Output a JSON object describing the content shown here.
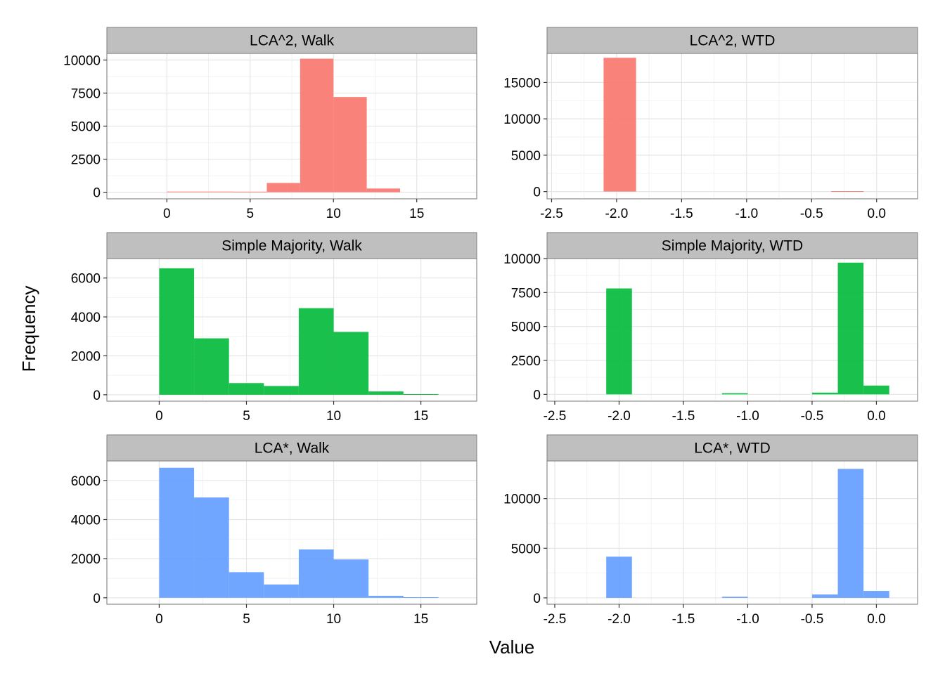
{
  "colors": {
    "series": [
      "#F8766D",
      "#00BA38",
      "#619CFF"
    ],
    "strip_fill": "#BFBFBF",
    "grid_major": "#E5E5E5",
    "grid_minor": "#F2F2F2",
    "panel_border": "#8C8C8C"
  },
  "chart_data": {
    "type": "bar",
    "subtype": "faceted histogram",
    "xlabel": "Value",
    "ylabel": "Frequency",
    "grid": true,
    "legend": "none",
    "panels": [
      {
        "title": "LCA^2, Walk",
        "xlim": [
          -3.6,
          18.6
        ],
        "ylim": [
          -500,
          10500
        ],
        "xticks": [
          {
            "v": 0,
            "label": "0"
          },
          {
            "v": 5,
            "label": "5"
          },
          {
            "v": 10,
            "label": "10"
          },
          {
            "v": 15,
            "label": "15"
          }
        ],
        "yticks": [
          {
            "v": 0,
            "label": "0"
          },
          {
            "v": 2500,
            "label": "2500"
          },
          {
            "v": 5000,
            "label": "5000"
          },
          {
            "v": 7500,
            "label": "7500"
          },
          {
            "v": 10000,
            "label": "10000"
          }
        ],
        "bin_width": 2,
        "bins": [
          {
            "x0": 0,
            "count": 50
          },
          {
            "x0": 2,
            "count": 50
          },
          {
            "x0": 4,
            "count": 40
          },
          {
            "x0": 6,
            "count": 700
          },
          {
            "x0": 8,
            "count": 10100
          },
          {
            "x0": 10,
            "count": 7200
          },
          {
            "x0": 12,
            "count": 280
          }
        ],
        "series": 0
      },
      {
        "title": "LCA^2, WTD",
        "xlim": [
          -2.535,
          0.315
        ],
        "ylim": [
          -1000,
          19000
        ],
        "xticks": [
          {
            "v": -2.5,
            "label": "-2.5"
          },
          {
            "v": -2.0,
            "label": "-2.0"
          },
          {
            "v": -1.5,
            "label": "-1.5"
          },
          {
            "v": -1.0,
            "label": "-1.0"
          },
          {
            "v": -0.5,
            "label": "-0.5"
          },
          {
            "v": 0.0,
            "label": "0.0"
          }
        ],
        "yticks": [
          {
            "v": 0,
            "label": "0"
          },
          {
            "v": 5000,
            "label": "5000"
          },
          {
            "v": 10000,
            "label": "10000"
          },
          {
            "v": 15000,
            "label": "15000"
          }
        ],
        "bin_width": 0.25,
        "bins": [
          {
            "x0": -2.1,
            "count": 18400
          },
          {
            "x0": -0.35,
            "count": 60
          }
        ],
        "series": 0
      },
      {
        "title": "Simple Majority, Walk",
        "xlim": [
          -3,
          18.2
        ],
        "ylim": [
          -330,
          7000
        ],
        "xticks": [
          {
            "v": 0,
            "label": "0"
          },
          {
            "v": 5,
            "label": "5"
          },
          {
            "v": 10,
            "label": "10"
          },
          {
            "v": 15,
            "label": "15"
          }
        ],
        "yticks": [
          {
            "v": 0,
            "label": "0"
          },
          {
            "v": 2000,
            "label": "2000"
          },
          {
            "v": 4000,
            "label": "4000"
          },
          {
            "v": 6000,
            "label": "6000"
          }
        ],
        "bin_width": 2,
        "bins": [
          {
            "x0": 0,
            "count": 6500
          },
          {
            "x0": 2,
            "count": 2900
          },
          {
            "x0": 4,
            "count": 600
          },
          {
            "x0": 6,
            "count": 450
          },
          {
            "x0": 8,
            "count": 4450
          },
          {
            "x0": 10,
            "count": 3230
          },
          {
            "x0": 12,
            "count": 170
          },
          {
            "x0": 14,
            "count": 30
          }
        ],
        "series": 1
      },
      {
        "title": "Simple Majority, WTD",
        "xlim": [
          -2.56,
          0.32
        ],
        "ylim": [
          -500,
          10000
        ],
        "xticks": [
          {
            "v": -2.5,
            "label": "-2.5"
          },
          {
            "v": -2.0,
            "label": "-2.0"
          },
          {
            "v": -1.5,
            "label": "-1.5"
          },
          {
            "v": -1.0,
            "label": "-1.0"
          },
          {
            "v": -0.5,
            "label": "-0.5"
          },
          {
            "v": 0.0,
            "label": "0.0"
          }
        ],
        "yticks": [
          {
            "v": 0,
            "label": "0"
          },
          {
            "v": 2500,
            "label": "2500"
          },
          {
            "v": 5000,
            "label": "5000"
          },
          {
            "v": 7500,
            "label": "7500"
          },
          {
            "v": 10000,
            "label": "10000"
          }
        ],
        "bin_width": 0.2,
        "bins": [
          {
            "x0": -2.1,
            "count": 7800
          },
          {
            "x0": -1.2,
            "count": 90
          },
          {
            "x0": -0.5,
            "count": 130
          },
          {
            "x0": -0.3,
            "count": 9700
          },
          {
            "x0": -0.1,
            "count": 650
          }
        ],
        "series": 1
      },
      {
        "title": "LCA*, Walk",
        "xlim": [
          -3,
          18.2
        ],
        "ylim": [
          -330,
          7000
        ],
        "xticks": [
          {
            "v": 0,
            "label": "0"
          },
          {
            "v": 5,
            "label": "5"
          },
          {
            "v": 10,
            "label": "10"
          },
          {
            "v": 15,
            "label": "15"
          }
        ],
        "yticks": [
          {
            "v": 0,
            "label": "0"
          },
          {
            "v": 2000,
            "label": "2000"
          },
          {
            "v": 4000,
            "label": "4000"
          },
          {
            "v": 6000,
            "label": "6000"
          }
        ],
        "bin_width": 2,
        "bins": [
          {
            "x0": 0,
            "count": 6650
          },
          {
            "x0": 2,
            "count": 5130
          },
          {
            "x0": 4,
            "count": 1310
          },
          {
            "x0": 6,
            "count": 680
          },
          {
            "x0": 8,
            "count": 2470
          },
          {
            "x0": 10,
            "count": 1960
          },
          {
            "x0": 12,
            "count": 100
          },
          {
            "x0": 14,
            "count": 30
          }
        ],
        "series": 2
      },
      {
        "title": "LCA*, WTD",
        "xlim": [
          -2.56,
          0.32
        ],
        "ylim": [
          -640,
          13800
        ],
        "xticks": [
          {
            "v": -2.5,
            "label": "-2.5"
          },
          {
            "v": -2.0,
            "label": "-2.0"
          },
          {
            "v": -1.5,
            "label": "-1.5"
          },
          {
            "v": -1.0,
            "label": "-1.0"
          },
          {
            "v": -0.5,
            "label": "-0.5"
          },
          {
            "v": 0.0,
            "label": "0.0"
          }
        ],
        "yticks": [
          {
            "v": 0,
            "label": "0"
          },
          {
            "v": 5000,
            "label": "5000"
          },
          {
            "v": 10000,
            "label": "10000"
          }
        ],
        "bin_width": 0.2,
        "bins": [
          {
            "x0": -2.1,
            "count": 4150
          },
          {
            "x0": -1.2,
            "count": 110
          },
          {
            "x0": -0.5,
            "count": 340
          },
          {
            "x0": -0.3,
            "count": 13000
          },
          {
            "x0": -0.1,
            "count": 700
          }
        ],
        "series": 2
      }
    ]
  }
}
